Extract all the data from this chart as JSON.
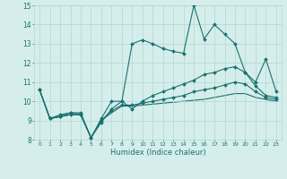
{
  "xlabel": "Humidex (Indice chaleur)",
  "xlim": [
    -0.5,
    23.5
  ],
  "ylim": [
    8,
    15
  ],
  "xticks": [
    0,
    1,
    2,
    3,
    4,
    5,
    6,
    7,
    8,
    9,
    10,
    11,
    12,
    13,
    14,
    15,
    16,
    17,
    18,
    19,
    20,
    21,
    22,
    23
  ],
  "yticks": [
    8,
    9,
    10,
    11,
    12,
    13,
    14,
    15
  ],
  "bg_color": "#d5eeeb",
  "line_color": "#1a7070",
  "grid_color": "#b0d8d4",
  "series1_x": [
    0,
    1,
    2,
    3,
    4,
    5,
    6,
    7,
    8,
    9,
    10,
    11,
    12,
    13,
    14,
    15,
    16,
    17,
    18,
    19,
    20,
    21,
    22,
    23
  ],
  "series1_y": [
    10.6,
    9.1,
    9.3,
    9.4,
    9.4,
    8.1,
    8.9,
    9.6,
    10.0,
    13.0,
    13.2,
    13.0,
    12.75,
    12.6,
    12.5,
    15.0,
    13.25,
    14.0,
    13.5,
    13.0,
    11.5,
    11.0,
    12.2,
    10.5
  ],
  "series2_x": [
    0,
    1,
    2,
    3,
    4,
    5,
    6,
    7,
    8,
    9,
    10,
    11,
    12,
    13,
    14,
    15,
    16,
    17,
    18,
    19,
    20,
    21,
    22,
    23
  ],
  "series2_y": [
    10.6,
    9.1,
    9.2,
    9.4,
    9.3,
    8.1,
    9.1,
    10.0,
    10.0,
    9.6,
    10.0,
    10.3,
    10.5,
    10.7,
    10.9,
    11.1,
    11.4,
    11.5,
    11.7,
    11.8,
    11.5,
    10.8,
    10.3,
    10.2
  ],
  "series3_x": [
    0,
    1,
    2,
    3,
    4,
    5,
    6,
    7,
    8,
    9,
    10,
    11,
    12,
    13,
    14,
    15,
    16,
    17,
    18,
    19,
    20,
    21,
    22,
    23
  ],
  "series3_y": [
    10.6,
    9.1,
    9.2,
    9.3,
    9.3,
    8.1,
    9.0,
    9.5,
    9.8,
    9.8,
    9.9,
    10.0,
    10.1,
    10.2,
    10.3,
    10.5,
    10.6,
    10.7,
    10.85,
    11.0,
    10.9,
    10.5,
    10.2,
    10.1
  ],
  "series4_x": [
    0,
    1,
    2,
    3,
    4,
    5,
    6,
    7,
    8,
    9,
    10,
    11,
    12,
    13,
    14,
    15,
    16,
    17,
    18,
    19,
    20,
    21,
    22,
    23
  ],
  "series4_y": [
    10.6,
    9.1,
    9.2,
    9.3,
    9.3,
    8.1,
    9.0,
    9.4,
    9.75,
    9.75,
    9.8,
    9.85,
    9.9,
    9.95,
    10.0,
    10.05,
    10.1,
    10.2,
    10.3,
    10.4,
    10.4,
    10.2,
    10.1,
    10.0
  ],
  "marker": "D",
  "markersize": 2.0,
  "linewidth": 0.8
}
